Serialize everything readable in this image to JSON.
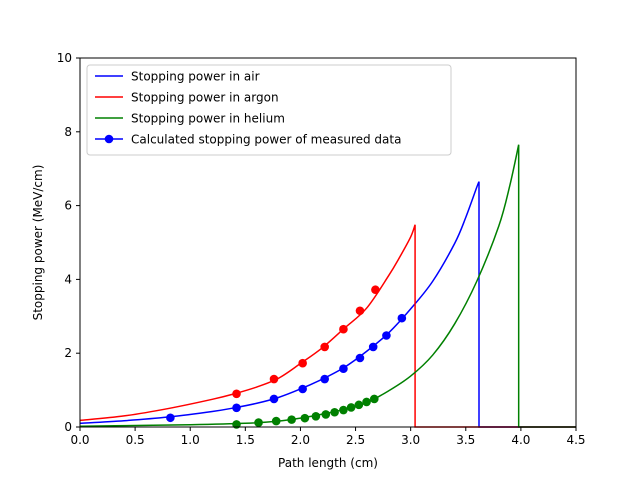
{
  "chart_data": {
    "type": "line",
    "title": "",
    "xlabel": "Path length (cm)",
    "ylabel": "Stopping power (MeV/cm)",
    "xlim": [
      0.0,
      4.5
    ],
    "ylim": [
      0,
      10
    ],
    "xticks": [
      0.0,
      0.5,
      1.0,
      1.5,
      2.0,
      2.5,
      3.0,
      3.5,
      4.0,
      4.5
    ],
    "xtick_labels": [
      "0.0",
      "0.5",
      "1.0",
      "1.5",
      "2.0",
      "2.5",
      "3.0",
      "3.5",
      "4.0",
      "4.5"
    ],
    "yticks": [
      0,
      2,
      4,
      6,
      8,
      10
    ],
    "ytick_labels": [
      "0",
      "2",
      "4",
      "6",
      "8",
      "10"
    ],
    "grid": false,
    "legend_position": "upper-left",
    "series": [
      {
        "name": "Stopping power in air",
        "color": "#0000ff",
        "kind": "line",
        "x": [
          0.0,
          0.4,
          0.8,
          1.2,
          1.4,
          1.6,
          1.8,
          2.0,
          2.2,
          2.4,
          2.6,
          2.8,
          3.0,
          3.2,
          3.4,
          3.5,
          3.6,
          3.62,
          3.62,
          3.7,
          4.0,
          4.5
        ],
        "y": [
          0.1,
          0.17,
          0.27,
          0.42,
          0.52,
          0.64,
          0.8,
          1.03,
          1.3,
          1.62,
          2.05,
          2.55,
          3.2,
          3.95,
          4.98,
          5.68,
          6.5,
          6.65,
          0.0,
          0.0,
          0.0,
          0.0
        ]
      },
      {
        "name": "Stopping power in argon",
        "color": "#ff0000",
        "kind": "line",
        "x": [
          0.0,
          0.4,
          0.8,
          1.2,
          1.4,
          1.6,
          1.8,
          2.0,
          2.2,
          2.4,
          2.6,
          2.8,
          2.9,
          3.0,
          3.04,
          3.04,
          3.2,
          3.6,
          4.0,
          4.5
        ],
        "y": [
          0.18,
          0.3,
          0.5,
          0.75,
          0.9,
          1.08,
          1.32,
          1.72,
          2.15,
          2.68,
          3.22,
          4.1,
          4.6,
          5.15,
          5.48,
          0.0,
          0.0,
          0.0,
          0.0,
          0.0
        ]
      },
      {
        "name": "Stopping power in helium",
        "color": "#008000",
        "kind": "line",
        "x": [
          0.0,
          0.5,
          1.0,
          1.5,
          1.8,
          2.0,
          2.2,
          2.4,
          2.6,
          2.8,
          3.0,
          3.2,
          3.4,
          3.6,
          3.8,
          3.9,
          3.98,
          3.98,
          4.2,
          4.5
        ],
        "y": [
          0.02,
          0.04,
          0.06,
          0.1,
          0.16,
          0.24,
          0.35,
          0.48,
          0.66,
          0.98,
          1.38,
          1.95,
          2.8,
          3.95,
          5.45,
          6.55,
          7.65,
          0.0,
          0.0,
          0.0
        ]
      },
      {
        "name": "Calculated stopping power of measured data",
        "color": "#0000ff",
        "kind": "markers-air",
        "x": [
          0.82,
          1.42,
          1.76,
          2.02,
          2.22,
          2.39,
          2.54,
          2.66,
          2.78,
          2.92
        ],
        "y": [
          0.25,
          0.52,
          0.76,
          1.03,
          1.3,
          1.58,
          1.87,
          2.17,
          2.48,
          2.95
        ]
      },
      {
        "name": "",
        "color": "#ff0000",
        "kind": "markers-argon",
        "x": [
          1.42,
          1.76,
          2.02,
          2.22,
          2.39,
          2.54,
          2.68
        ],
        "y": [
          0.9,
          1.3,
          1.73,
          2.17,
          2.65,
          3.15,
          3.72
        ]
      },
      {
        "name": "",
        "color": "#008000",
        "kind": "markers-helium",
        "x": [
          1.42,
          1.62,
          1.78,
          1.92,
          2.04,
          2.14,
          2.23,
          2.31,
          2.39,
          2.46,
          2.53,
          2.6,
          2.67
        ],
        "y": [
          0.07,
          0.12,
          0.16,
          0.2,
          0.24,
          0.29,
          0.34,
          0.4,
          0.46,
          0.53,
          0.6,
          0.68,
          0.76
        ]
      }
    ]
  }
}
